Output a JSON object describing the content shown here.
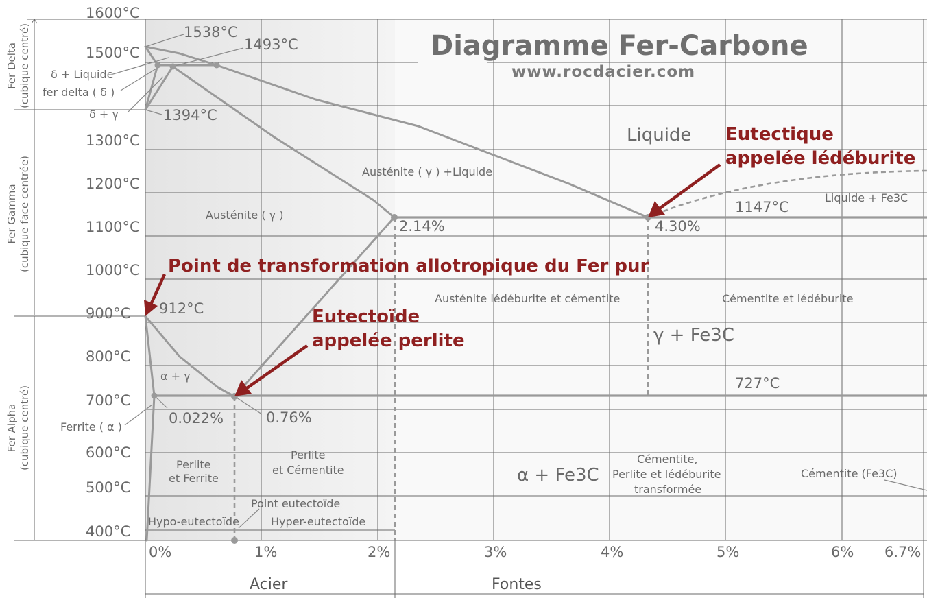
{
  "title": "Diagramme Fer-Carbone",
  "website": "www.rocdacier.com",
  "colors": {
    "callout": "#8f2020",
    "curves": "#9a9a9a",
    "text": "#6a6a6a",
    "shade_left": "#e6e6e6"
  },
  "axis": {
    "y_ticks": [
      "1600°C",
      "1500°C",
      "1300°C",
      "1200°C",
      "1100°C",
      "1000°C",
      "900°C",
      "800°C",
      "700°C",
      "600°C",
      "500°C",
      "400°C"
    ],
    "x_ticks": [
      "0%",
      "1%",
      "2%",
      "3%",
      "4%",
      "5%",
      "6%",
      "6.7%"
    ]
  },
  "side_labels": {
    "delta": {
      "line1": "Fer Delta",
      "line2": "(cubique centré)"
    },
    "gamma": {
      "line1": "Fer Gamma",
      "line2": "(cubique face centrée)"
    },
    "alpha": {
      "line1": "Fer Alpha",
      "line2": "(cubique centré)"
    }
  },
  "points": {
    "t1538": "1538°C",
    "t1493": "1493°C",
    "t1394": "1394°C",
    "t912": "912°C",
    "t1147": "1147°C",
    "t727": "727°C",
    "c214": "2.14%",
    "c430": "4.30%",
    "c0022": "0.022%",
    "c076": "0.76%"
  },
  "regions": {
    "delta_liquide": "δ + Liquide",
    "fer_delta": "fer delta ( δ )",
    "delta_gamma": "δ + γ",
    "liquide": "Liquide",
    "austenite_liquide": "Austénite ( γ ) +Liquide",
    "austenite": "Austénite ( γ )",
    "liquide_fe3c": "Liquide + Fe3C",
    "aus_ledeb_cem": "Austénite lédéburite et cémentite",
    "cem_ledeb": "Cémentite et lédéburite",
    "gamma_fe3c": "γ + Fe3C",
    "alpha_gamma": "α + γ",
    "ferrite": "Ferrite ( α )",
    "perlite_ferrite_1": "Perlite",
    "perlite_ferrite_2": "et Ferrite",
    "perlite_cem_1": "Perlite",
    "perlite_cem_2": "et Cémentite",
    "alpha_fe3c": "α + Fe3C",
    "cem_perl_1": "Cémentite,",
    "cem_perl_2": "Perlite et lédéburite",
    "cem_perl_3": "transformée",
    "cementite_fe3c": "Cémentite (Fe3C)",
    "point_eutectoide": "Point eutectoïde",
    "hypo": "Hypo-eutectoïde",
    "hyper": "Hyper-eutectoïde"
  },
  "callouts": {
    "eutectique_1": "Eutectique",
    "eutectique_2": "appelée lédéburite",
    "point_transfo": "Point de transformation allotropique du Fer pur",
    "eutectoide_1": "Eutectoïde",
    "eutectoide_2": "appelée perlite"
  },
  "bottom": {
    "acier": "Acier",
    "fontes": "Fontes"
  }
}
